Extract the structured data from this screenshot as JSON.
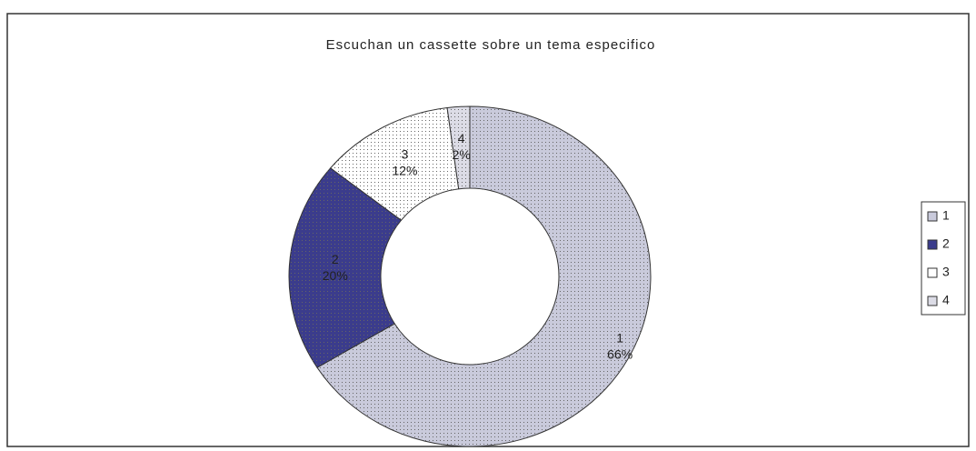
{
  "chart_data": {
    "type": "donut",
    "title": "Escuchan un cassette sobre un tema especifico",
    "categories": [
      "1",
      "2",
      "3",
      "4"
    ],
    "values": [
      66,
      20,
      12,
      2
    ],
    "value_labels": [
      "66%",
      "20%",
      "12%",
      "2%"
    ],
    "colors": [
      "#c9cadb",
      "#3b3c8c",
      "#ffffff",
      "#dcdce6"
    ],
    "legend": "right"
  }
}
